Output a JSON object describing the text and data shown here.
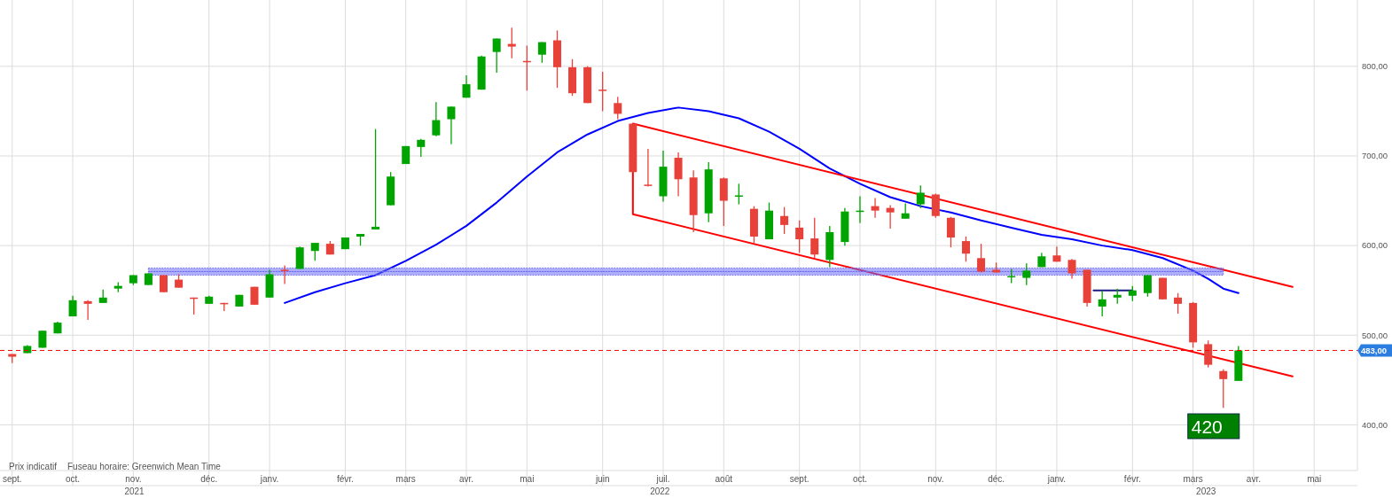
{
  "chart_data": {
    "type": "candlestick",
    "x": [
      "2021-09-06",
      "2021-09-13",
      "2021-09-20",
      "2021-09-27",
      "2021-10-04",
      "2021-10-11",
      "2021-10-18",
      "2021-10-25",
      "2021-11-01",
      "2021-11-08",
      "2021-11-15",
      "2021-11-22",
      "2021-11-29",
      "2021-12-06",
      "2021-12-13",
      "2021-12-20",
      "2021-12-27",
      "2022-01-03",
      "2022-01-10",
      "2022-01-17",
      "2022-01-24",
      "2022-01-31",
      "2022-02-07",
      "2022-02-14",
      "2022-02-21",
      "2022-02-28",
      "2022-03-07",
      "2022-03-14",
      "2022-03-21",
      "2022-03-28",
      "2022-04-04",
      "2022-04-11",
      "2022-04-18",
      "2022-04-25",
      "2022-05-02",
      "2022-05-09",
      "2022-05-16",
      "2022-05-23",
      "2022-05-30",
      "2022-06-06",
      "2022-06-13",
      "2022-06-20",
      "2022-06-27",
      "2022-07-04",
      "2022-07-11",
      "2022-07-18",
      "2022-07-25",
      "2022-08-01",
      "2022-08-08",
      "2022-08-15",
      "2022-08-22",
      "2022-08-29",
      "2022-09-05",
      "2022-09-12",
      "2022-09-19",
      "2022-09-26",
      "2022-10-03",
      "2022-10-10",
      "2022-10-17",
      "2022-10-24",
      "2022-10-31",
      "2022-11-07",
      "2022-11-14",
      "2022-11-21",
      "2022-11-28",
      "2022-12-05",
      "2022-12-12",
      "2022-12-19",
      "2022-12-26",
      "2023-01-02",
      "2023-01-09",
      "2023-01-16",
      "2023-01-23",
      "2023-01-30",
      "2023-02-06",
      "2023-02-13",
      "2023-02-20",
      "2023-02-27",
      "2023-03-06",
      "2023-03-13",
      "2023-03-20",
      "2023-03-27"
    ],
    "ohlc": [
      [
        479,
        479,
        469,
        476
      ],
      [
        480,
        489,
        480,
        488
      ],
      [
        486,
        505,
        486,
        505
      ],
      [
        502,
        515,
        502,
        514
      ],
      [
        521,
        544,
        521,
        539
      ],
      [
        538,
        539,
        517,
        535
      ],
      [
        536,
        551,
        536,
        542
      ],
      [
        552,
        559,
        548,
        555
      ],
      [
        558,
        567,
        556,
        567
      ],
      [
        556,
        569,
        556,
        569
      ],
      [
        567,
        567,
        548,
        548
      ],
      [
        562,
        568,
        553,
        553
      ],
      [
        542,
        542,
        523,
        541
      ],
      [
        535,
        544,
        535,
        543
      ],
      [
        536,
        536,
        527,
        535
      ],
      [
        532,
        545,
        532,
        545
      ],
      [
        554,
        554,
        534,
        534
      ],
      [
        542,
        573,
        542,
        568
      ],
      [
        573,
        578,
        557,
        572
      ],
      [
        574,
        599,
        574,
        598
      ],
      [
        594,
        603,
        583,
        603
      ],
      [
        602,
        605,
        590,
        590
      ],
      [
        596,
        609,
        596,
        609
      ],
      [
        610,
        613,
        600,
        613
      ],
      [
        618,
        730,
        618,
        621
      ],
      [
        645,
        682,
        645,
        677
      ],
      [
        691,
        711,
        691,
        711
      ],
      [
        710,
        719,
        699,
        718
      ],
      [
        723,
        760,
        722,
        740
      ],
      [
        741,
        755,
        713,
        755
      ],
      [
        765,
        790,
        765,
        780
      ],
      [
        774,
        812,
        774,
        811
      ],
      [
        816,
        831,
        793,
        831
      ],
      [
        825,
        843,
        809,
        822
      ],
      [
        806,
        823,
        773,
        805
      ],
      [
        813,
        827,
        804,
        827
      ],
      [
        829,
        840,
        776,
        799
      ],
      [
        799,
        808,
        767,
        770
      ],
      [
        799,
        800,
        759,
        759
      ],
      [
        774,
        794,
        750,
        773
      ],
      [
        759,
        766,
        741,
        747
      ],
      [
        736,
        736,
        682,
        682
      ],
      [
        668,
        708,
        666,
        667
      ],
      [
        655,
        706,
        649,
        688
      ],
      [
        698,
        704,
        655,
        674
      ],
      [
        676,
        684,
        615,
        634
      ],
      [
        636,
        693,
        626,
        685
      ],
      [
        675,
        676,
        622,
        650
      ],
      [
        655,
        669,
        646,
        656
      ],
      [
        641,
        644,
        603,
        610
      ],
      [
        607,
        648,
        607,
        639
      ],
      [
        633,
        643,
        613,
        623
      ],
      [
        620,
        628,
        592,
        607
      ],
      [
        608,
        631,
        586,
        590
      ],
      [
        584,
        622,
        576,
        615
      ],
      [
        604,
        642,
        600,
        638
      ],
      [
        638,
        655,
        625,
        639
      ],
      [
        644,
        653,
        631,
        639
      ],
      [
        642,
        645,
        619,
        637
      ],
      [
        630,
        647,
        630,
        636
      ],
      [
        646,
        667,
        642,
        659
      ],
      [
        657,
        658,
        631,
        633
      ],
      [
        631,
        632,
        598,
        609
      ],
      [
        605,
        610,
        582,
        591
      ],
      [
        586,
        602,
        570,
        571
      ],
      [
        573,
        581,
        570,
        570
      ],
      [
        565,
        574,
        558,
        566
      ],
      [
        564,
        580,
        556,
        572
      ],
      [
        576,
        592,
        576,
        588
      ],
      [
        589,
        599,
        582,
        582
      ],
      [
        584,
        585,
        563,
        569
      ],
      [
        573,
        573,
        532,
        536
      ],
      [
        532,
        549,
        521,
        540
      ],
      [
        542,
        552,
        535,
        545
      ],
      [
        544,
        555,
        538,
        550
      ],
      [
        547,
        567,
        543,
        567
      ],
      [
        564,
        564,
        540,
        540
      ],
      [
        542,
        547,
        524,
        535
      ],
      [
        536,
        537,
        486,
        492
      ],
      [
        490,
        494,
        464,
        467
      ],
      [
        460,
        462,
        419,
        451
      ],
      [
        449,
        488,
        449,
        483
      ]
    ],
    "series": [
      {
        "type": "line",
        "color": "#0000ff",
        "x": [
          "2022-01-10",
          "2022-01-24",
          "2022-02-07",
          "2022-02-21",
          "2022-03-07",
          "2022-03-21",
          "2022-04-04",
          "2022-04-18",
          "2022-05-02",
          "2022-05-16",
          "2022-05-30",
          "2022-06-13",
          "2022-06-27",
          "2022-07-11",
          "2022-07-25",
          "2022-08-08",
          "2022-08-22",
          "2022-09-05",
          "2022-09-19",
          "2022-10-03",
          "2022-10-17",
          "2022-10-31",
          "2022-11-14",
          "2022-11-28",
          "2022-12-12",
          "2022-12-26",
          "2023-01-09",
          "2023-01-23",
          "2023-02-06",
          "2023-02-20",
          "2023-03-06",
          "2023-03-13",
          "2023-03-20",
          "2023-03-27"
        ],
        "values": [
          536,
          548,
          558,
          567,
          583,
          601,
          622,
          648,
          677,
          704,
          724,
          739,
          748,
          754,
          750,
          742,
          727,
          708,
          686,
          669,
          654,
          644,
          637,
          628,
          620,
          612,
          607,
          600,
          595,
          586,
          572,
          563,
          552,
          547
        ]
      },
      {
        "type": "line",
        "color": "#ff0000",
        "x": [
          "2023-04-21",
          "2022-06-20",
          "2022-06-20",
          "2023-04-21"
        ],
        "values": [
          554,
          736,
          635,
          454
        ]
      },
      {
        "type": "line",
        "color": "#1a1a80",
        "x": [
          "2023-01-19",
          "2023-02-06"
        ],
        "values": [
          550,
          550
        ]
      },
      {
        "type": "line",
        "color": "#6b6bf5",
        "line_style": "dotted",
        "x": [
          "2021-11-08",
          "2023-03-20"
        ],
        "values": [
          571,
          571
        ],
        "lower": [
          567,
          567
        ],
        "upper": [
          575,
          575
        ]
      }
    ],
    "ylim": [
      349,
      874
    ],
    "yticks": [
      {
        "value": 400,
        "label": "400,00"
      },
      {
        "value": 500,
        "label": "500,00"
      },
      {
        "value": 600,
        "label": "600,00"
      },
      {
        "value": 700,
        "label": "700,00"
      },
      {
        "value": 800,
        "label": "800,00"
      }
    ],
    "xlim": [
      "2021-09-02",
      "2023-05-21"
    ],
    "xticks": [
      {
        "value": "2021-09-06",
        "label": "sept."
      },
      {
        "value": "2021-10-04",
        "label": "oct."
      },
      {
        "value": "2021-11-01",
        "label": "nov."
      },
      {
        "value": "2021-12-06",
        "label": "déc."
      },
      {
        "value": "2022-01-03",
        "label": "janv."
      },
      {
        "value": "2022-02-07",
        "label": "févr."
      },
      {
        "value": "2022-03-07",
        "label": "mars"
      },
      {
        "value": "2022-04-04",
        "label": "avr."
      },
      {
        "value": "2022-05-02",
        "label": "mai"
      },
      {
        "value": "2022-06-06",
        "label": "juin"
      },
      {
        "value": "2022-07-04",
        "label": "juil."
      },
      {
        "value": "2022-08-01",
        "label": "août"
      },
      {
        "value": "2022-09-05",
        "label": "sept."
      },
      {
        "value": "2022-10-03",
        "label": "oct."
      },
      {
        "value": "2022-11-07",
        "label": "nov."
      },
      {
        "value": "2022-12-05",
        "label": "déc."
      },
      {
        "value": "2023-01-02",
        "label": "janv."
      },
      {
        "value": "2023-02-06",
        "label": "févr."
      },
      {
        "value": "2023-03-06",
        "label": "mars"
      },
      {
        "value": "2023-04-03",
        "label": "avr."
      },
      {
        "value": "2023-05-01",
        "label": "mai"
      }
    ],
    "grid": true,
    "ref_lines": [
      {
        "axis": "y",
        "value": 483,
        "label": "483,00",
        "color": "#ff0000",
        "line_style": "dashed"
      }
    ],
    "annotations": [
      "Prix indicatif",
      "Fuseau horaire: Greenwich Mean Time",
      "2021",
      "2022",
      "2023",
      "420"
    ]
  }
}
